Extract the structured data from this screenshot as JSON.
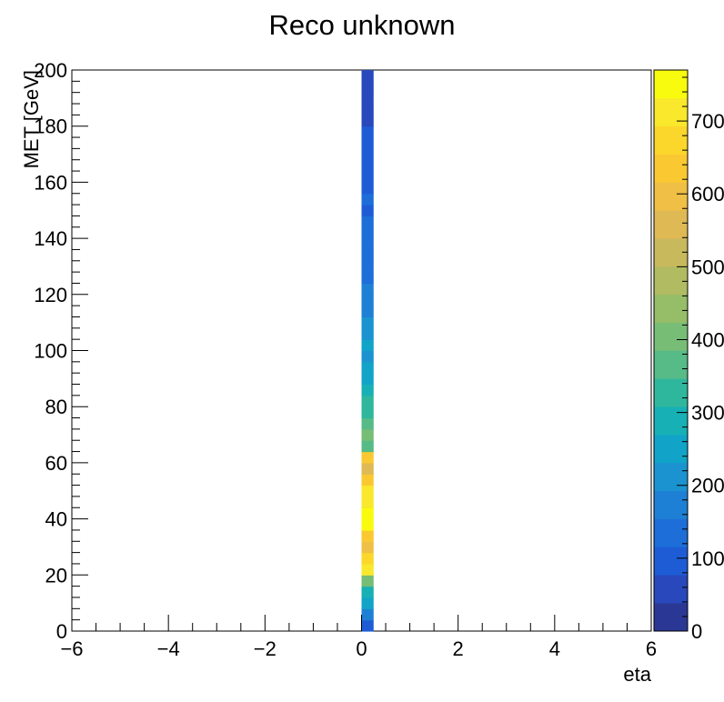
{
  "chart_data": {
    "type": "heatmap",
    "title": "Reco unknown",
    "xlabel": "eta",
    "ylabel": "MET [GeV]",
    "xlim": [
      -6,
      6
    ],
    "ylim": [
      0,
      200
    ],
    "x_ticks": [
      "−6",
      "−4",
      "−2",
      "0",
      "2",
      "4",
      "6"
    ],
    "y_ticks": [
      "0",
      "20",
      "40",
      "60",
      "80",
      "100",
      "120",
      "140",
      "160",
      "180",
      "200"
    ],
    "colorbar": {
      "range": [
        0,
        770
      ],
      "ticks": [
        "0",
        "100",
        "200",
        "300",
        "400",
        "500",
        "600",
        "700"
      ]
    },
    "cells": {
      "x_range": [
        0,
        0.25
      ],
      "y_bin_width": 4,
      "counts": [
        110,
        160,
        260,
        300,
        420,
        700,
        680,
        600,
        650,
        750,
        760,
        700,
        700,
        650,
        560,
        620,
        380,
        400,
        360,
        320,
        310,
        300,
        260,
        250,
        230,
        250,
        200,
        200,
        170,
        180,
        160,
        140,
        130,
        150,
        120,
        130,
        120,
        110,
        120,
        110,
        90,
        100,
        90,
        90,
        90,
        70,
        60,
        50,
        40,
        40
      ]
    },
    "palette": [
      "#2b3794",
      "#2848bc",
      "#1e5cd6",
      "#1d6ed8",
      "#1e80d4",
      "#1b93d0",
      "#11a4c8",
      "#17b0b4",
      "#2fb79e",
      "#56bb87",
      "#77bd76",
      "#96bd68",
      "#b1bb61",
      "#c9b95d",
      "#dfb954",
      "#f0bf45",
      "#fac932",
      "#fbd72c",
      "#f9e82b",
      "#f9fb0e"
    ],
    "palette_step": 38.5
  }
}
